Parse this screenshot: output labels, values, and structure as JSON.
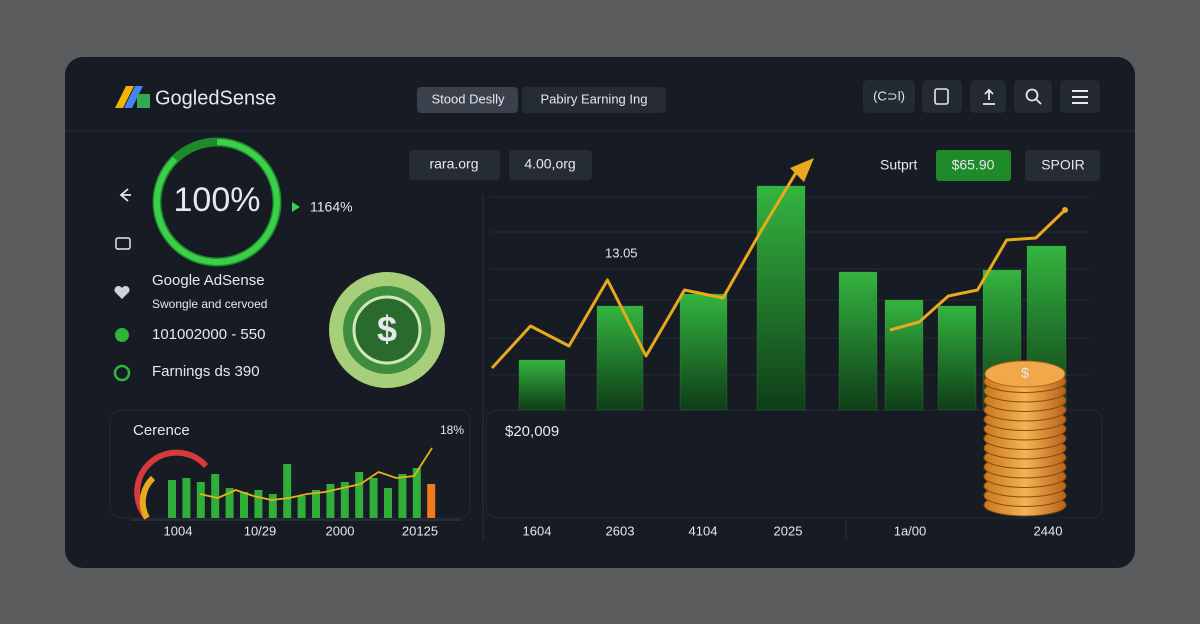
{
  "header": {
    "logo": "GogledSense",
    "tabs": [
      "Stood Deslly",
      "Pabiry Earning Ing"
    ],
    "icon_label": "(C⊃l)"
  },
  "left_panel": {
    "gauge_text": "100%",
    "change": "1164%",
    "items": [
      "Google AdSense",
      "Swongle and cervoed",
      "101002000 - 550",
      "Farnings ds 390"
    ]
  },
  "mini_chart": {
    "title": "Cerence",
    "percent": "18%",
    "x_labels": [
      "1004",
      "10/29",
      "2000",
      "20125"
    ],
    "ylim": [
      0,
      60
    ],
    "bars": [
      38,
      40,
      36,
      44,
      30,
      26,
      28,
      24,
      54,
      22,
      28,
      34,
      36,
      46,
      40,
      30,
      44,
      50
    ],
    "line": [
      24,
      20,
      28,
      22,
      18,
      20,
      24,
      26,
      30,
      34,
      46,
      40,
      42,
      70
    ],
    "color": "#2fae3a",
    "line_color": "#e3b21b",
    "last_bar": 34,
    "last_bar_color": "#f07a1c"
  },
  "main_chart": {
    "filters": [
      "rara.org",
      "4.00,org"
    ],
    "support": "Sutprt",
    "amount": "$65.90",
    "button": "SPOIR",
    "annotation": "13.05",
    "total": "$20,009",
    "x_labels": [
      "1604",
      "2603",
      "4104",
      "2025",
      "1a/00",
      "2440"
    ],
    "ylim": [
      0,
      130
    ],
    "bars": [
      25,
      52,
      58,
      112,
      69,
      55,
      52,
      70,
      82
    ],
    "line_a": [
      21,
      42,
      32,
      65,
      27,
      60,
      56,
      90,
      122
    ],
    "line_b": [
      40,
      44,
      57,
      60,
      85,
      86,
      100
    ],
    "bar_color": "#2fa33a",
    "line_color": "#e8a91c"
  }
}
